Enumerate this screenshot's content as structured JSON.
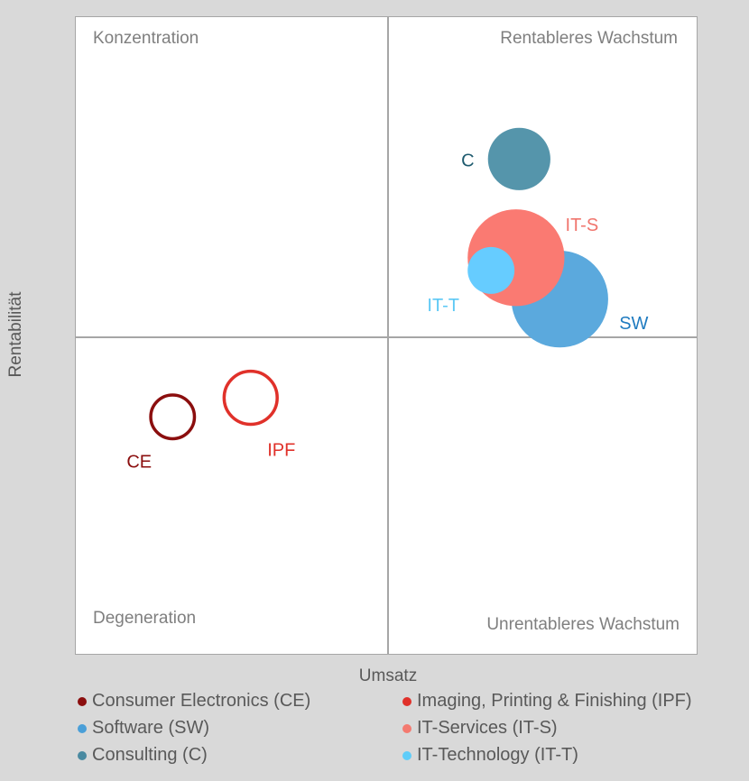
{
  "chart_data": {
    "type": "bubble",
    "xlabel": "Umsatz",
    "ylabel": "Rentabilität",
    "quadrants": {
      "top_left": "Konzentration",
      "top_right": "Rentableres Wachstum",
      "bottom_left": "Degeneration",
      "bottom_right": "Unrentableres Wachstum"
    },
    "x_axis_visible": false,
    "y_axis_visible": false,
    "xlim": [
      -1,
      1
    ],
    "ylim": [
      -1,
      1
    ],
    "grid": false,
    "legend_position": "bottom",
    "series": [
      {
        "name": "Consumer Electronics (CE)",
        "short": "CE",
        "x": -0.69,
        "y": -0.25,
        "size": 0.14,
        "filled": false,
        "color": "#8b0e0e",
        "legend_dot": "#8b0e0e"
      },
      {
        "name": "Imaging, Printing & Finishing (IPF)",
        "short": "IPF",
        "x": -0.44,
        "y": -0.19,
        "size": 0.17,
        "filled": false,
        "color": "#e0312a",
        "legend_dot": "#e0312a"
      },
      {
        "name": "Software (SW)",
        "short": "SW",
        "x": 0.55,
        "y": 0.12,
        "size": 0.31,
        "filled": true,
        "color": "#5ba9dd",
        "label_color": "#1f7bc0",
        "legend_dot": "#4a9fd8"
      },
      {
        "name": "IT-Services (IT-S)",
        "short": "IT-S",
        "x": 0.41,
        "y": 0.25,
        "size": 0.31,
        "filled": true,
        "color": "#fa7a72",
        "label_color": "#f0756d",
        "legend_dot": "#f47a70"
      },
      {
        "name": "Consulting (C)",
        "short": "C",
        "x": 0.42,
        "y": 0.56,
        "size": 0.2,
        "filled": true,
        "color": "#5595ab",
        "label_color": "#1d5a6e",
        "legend_dot": "#4a8aa1"
      },
      {
        "name": "IT-Technology (IT-T)",
        "short": "IT-T",
        "x": 0.33,
        "y": 0.21,
        "size": 0.15,
        "filled": true,
        "color": "#66ccff",
        "label_color": "#5bc8f5",
        "legend_dot": "#5fcdf9"
      }
    ]
  }
}
